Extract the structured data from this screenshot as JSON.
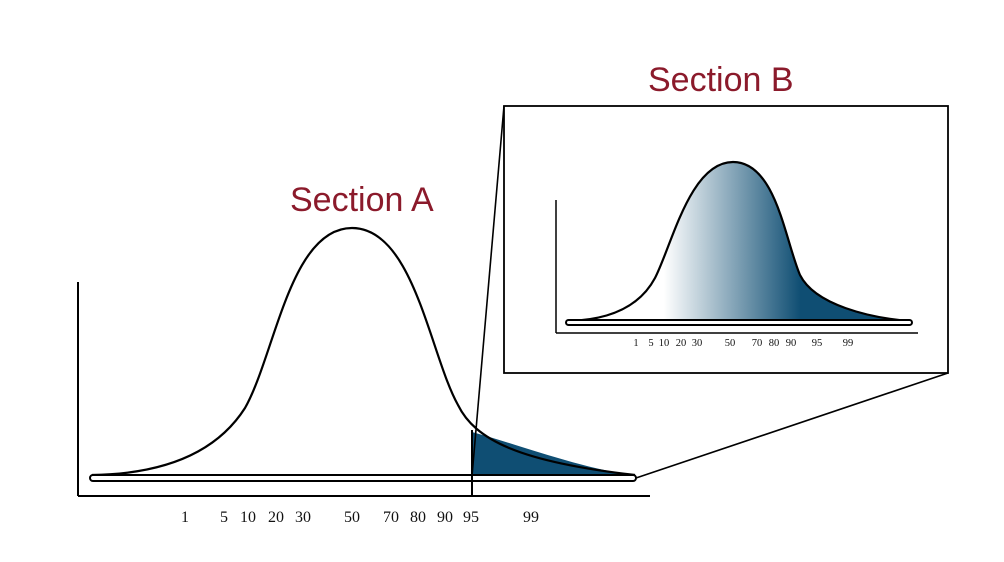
{
  "section_a": {
    "title": "Section A",
    "tick_labels": [
      "1",
      "5",
      "10",
      "20",
      "30",
      "50",
      "70",
      "80",
      "90",
      "95",
      "99"
    ],
    "highlight_from": "95"
  },
  "section_b": {
    "title": "Section B",
    "tick_labels": [
      "1",
      "5",
      "10",
      "20",
      "30",
      "50",
      "70",
      "80",
      "90",
      "95",
      "99"
    ]
  },
  "colors": {
    "title": "#8b1a2b",
    "fill": "#0f4e73",
    "gradient_start": "#ffffff",
    "gradient_end": "#0f4e73",
    "line": "#000000"
  }
}
